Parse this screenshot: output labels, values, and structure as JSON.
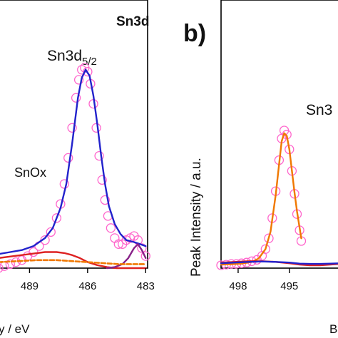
{
  "chart_data": [
    {
      "type": "scatter",
      "title": "Sn3d",
      "xlabel": "y / eV",
      "ylabel": "",
      "x_reversed": true,
      "xlim": [
        490.6,
        482.9
      ],
      "ylim": [
        0.0,
        1.0
      ],
      "x_ticks": [
        {
          "value": 489,
          "label": "489"
        },
        {
          "value": 486,
          "label": "486"
        },
        {
          "value": 483,
          "label": "483"
        }
      ],
      "annotations": [
        {
          "text": "Sn3d",
          "sub": "5/2"
        },
        {
          "text": "SnOx"
        }
      ],
      "series": [
        {
          "kind": "markers",
          "color": "#ff66cc",
          "x": [
            490.6,
            490.3,
            490.0,
            489.7,
            489.4,
            489.1,
            488.8,
            488.5,
            488.2,
            487.9,
            487.6,
            487.4,
            487.2,
            487.0,
            486.8,
            486.6,
            486.45,
            486.3,
            486.15,
            486.0,
            485.85,
            485.7,
            485.55,
            485.4,
            485.25,
            485.1,
            484.95,
            484.8,
            484.6,
            484.4,
            484.2,
            484.0,
            483.8,
            483.6,
            483.4,
            483.2,
            483.0
          ],
          "y": [
            0.0,
            0.01,
            0.02,
            0.03,
            0.04,
            0.06,
            0.08,
            0.11,
            0.14,
            0.18,
            0.25,
            0.32,
            0.42,
            0.55,
            0.7,
            0.85,
            0.94,
            0.99,
            1.0,
            0.98,
            0.92,
            0.82,
            0.7,
            0.56,
            0.44,
            0.34,
            0.26,
            0.2,
            0.15,
            0.12,
            0.12,
            0.14,
            0.15,
            0.16,
            0.14,
            0.1,
            0.06
          ]
        },
        {
          "kind": "line",
          "color": "#2222cc",
          "x": [
            490.6,
            490.0,
            489.4,
            488.8,
            488.2,
            487.8,
            487.4,
            487.1,
            486.8,
            486.5,
            486.3,
            486.1,
            485.9,
            485.7,
            485.5,
            485.3,
            485.1,
            484.9,
            484.6,
            484.3,
            484.0,
            483.6,
            483.3,
            483.0
          ],
          "y": [
            0.07,
            0.08,
            0.09,
            0.11,
            0.15,
            0.2,
            0.3,
            0.42,
            0.62,
            0.85,
            0.95,
            0.99,
            0.96,
            0.86,
            0.72,
            0.56,
            0.42,
            0.31,
            0.22,
            0.17,
            0.14,
            0.13,
            0.12,
            0.11
          ]
        },
        {
          "kind": "line",
          "color": "#dd2222",
          "x": [
            490.6,
            489.8,
            489.0,
            488.2,
            487.6,
            487.2,
            486.8,
            486.4,
            486.0,
            485.5,
            485.0,
            484.5,
            484.0,
            483.5,
            483.0
          ],
          "y": [
            0.05,
            0.06,
            0.07,
            0.08,
            0.08,
            0.075,
            0.065,
            0.05,
            0.03,
            0.015,
            0.005,
            0.0,
            0.0,
            0.0,
            0.0
          ]
        },
        {
          "kind": "line",
          "color": "#882288",
          "x": [
            485.0,
            484.6,
            484.2,
            483.9,
            483.6,
            483.4,
            483.2,
            483.0
          ],
          "y": [
            0.0,
            0.005,
            0.02,
            0.05,
            0.1,
            0.12,
            0.09,
            0.05
          ]
        },
        {
          "kind": "line",
          "color": "#f07800",
          "dashed": true,
          "x": [
            490.6,
            489.6,
            488.6,
            487.6,
            486.8,
            486.0,
            485.2,
            484.4,
            483.6,
            483.0
          ],
          "y": [
            0.03,
            0.035,
            0.04,
            0.04,
            0.035,
            0.03,
            0.025,
            0.02,
            0.02,
            0.02
          ]
        }
      ]
    },
    {
      "type": "scatter",
      "panel_label": "b)",
      "xlabel": "B",
      "ylabel": "Peak Intensity / a.u.",
      "x_reversed": true,
      "xlim": [
        499.0,
        491.9
      ],
      "ylim": [
        0.0,
        1.0
      ],
      "x_ticks": [
        {
          "value": 498,
          "label": "498"
        },
        {
          "value": 495,
          "label": "495"
        },
        {
          "value": 492,
          "label": ""
        }
      ],
      "annotations": [
        {
          "text": "Sn3"
        }
      ],
      "series": [
        {
          "kind": "markers",
          "color": "#ff66cc",
          "x": [
            499.0,
            498.7,
            498.4,
            498.1,
            497.8,
            497.5,
            497.2,
            496.9,
            496.6,
            496.4,
            496.2,
            496.0,
            495.8,
            495.6,
            495.45,
            495.3,
            495.15,
            495.0,
            494.85,
            494.7,
            494.55,
            494.4,
            494.3
          ],
          "y": [
            0.0,
            0.005,
            0.01,
            0.01,
            0.015,
            0.02,
            0.03,
            0.04,
            0.07,
            0.12,
            0.2,
            0.35,
            0.55,
            0.78,
            0.94,
            1.0,
            0.97,
            0.86,
            0.7,
            0.53,
            0.38,
            0.26,
            0.18
          ]
        },
        {
          "kind": "line",
          "color": "#f07800",
          "x": [
            499.0,
            498.4,
            497.8,
            497.2,
            496.8,
            496.4,
            496.1,
            495.8,
            495.6,
            495.45,
            495.3,
            495.15,
            495.0,
            494.85,
            494.7,
            494.55,
            494.4,
            494.3
          ],
          "y": [
            0.005,
            0.008,
            0.012,
            0.025,
            0.05,
            0.12,
            0.25,
            0.52,
            0.75,
            0.92,
            0.98,
            0.96,
            0.86,
            0.7,
            0.54,
            0.4,
            0.28,
            0.2
          ]
        },
        {
          "kind": "line",
          "color": "#dd2222",
          "x": [
            499.0,
            498.2,
            497.4,
            496.6,
            495.8,
            495.0,
            494.4,
            493.8,
            493.2,
            492.6,
            492.0
          ],
          "y": [
            0.02,
            0.025,
            0.03,
            0.03,
            0.025,
            0.015,
            0.005,
            0.0,
            0.0,
            0.005,
            0.01
          ]
        },
        {
          "kind": "line",
          "color": "#2222cc",
          "x": [
            499.0,
            498.2,
            497.4,
            496.6,
            495.8,
            495.0,
            494.4,
            493.8,
            493.2,
            492.6,
            492.0
          ],
          "y": [
            0.015,
            0.02,
            0.025,
            0.028,
            0.025,
            0.02,
            0.012,
            0.01,
            0.01,
            0.012,
            0.015
          ]
        }
      ]
    }
  ]
}
